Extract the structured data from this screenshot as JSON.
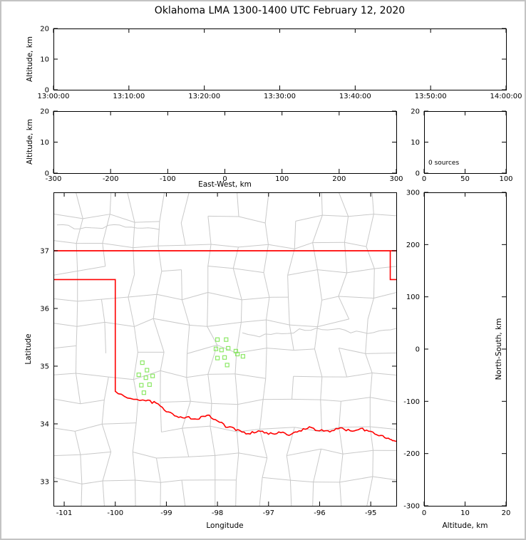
{
  "title": "Oklahoma LMA 1300-1400 UTC February 12, 2020",
  "colors": {
    "axis": "#000000",
    "county_lines": "#c9c9c9",
    "state_border": "#ff0000",
    "station_marker": "#8ce866",
    "frame": "#c3c3c3"
  },
  "chart_data": [
    {
      "id": "time_height",
      "type": "scatter",
      "xlabel": "",
      "ylabel": "Altitude, km",
      "x_tick_labels": [
        "13:00:00",
        "13:10:00",
        "13:20:00",
        "13:30:00",
        "13:40:00",
        "13:50:00",
        "14:00:00"
      ],
      "y_ticks": [
        0,
        10,
        20
      ],
      "ylim": [
        0,
        20
      ],
      "points": []
    },
    {
      "id": "ew_height",
      "type": "scatter",
      "xlabel": "East-West, km",
      "ylabel": "Altitude, km",
      "x_ticks": [
        -300,
        -200,
        -100,
        0,
        100,
        200,
        300
      ],
      "xlim": [
        -300,
        300
      ],
      "y_ticks": [
        0,
        10,
        20
      ],
      "ylim": [
        0,
        20
      ],
      "points": []
    },
    {
      "id": "altitude_histogram",
      "type": "line",
      "annotation": "0 sources",
      "x_ticks": [
        0,
        50,
        100
      ],
      "xlim": [
        0,
        100
      ],
      "y_ticks": [
        0,
        10,
        20
      ],
      "ylim": [
        0,
        20
      ],
      "points": []
    },
    {
      "id": "plan_view_map",
      "type": "scatter",
      "xlabel": "Longitude",
      "ylabel": "Latitude",
      "x_ticks": [
        -101,
        -100,
        -99,
        -98,
        -97,
        -96,
        -95
      ],
      "xlim": [
        -101.21,
        -94.5
      ],
      "y_ticks": [
        33,
        34,
        35,
        36,
        37
      ],
      "ylim": [
        32.58,
        38.012
      ],
      "stations": [
        [
          -98.0,
          35.46
        ],
        [
          -97.83,
          35.46
        ],
        [
          -98.03,
          35.3
        ],
        [
          -97.92,
          35.28
        ],
        [
          -97.79,
          35.31
        ],
        [
          -97.64,
          35.26
        ],
        [
          -98.0,
          35.14
        ],
        [
          -97.86,
          35.15
        ],
        [
          -97.81,
          35.02
        ],
        [
          -97.61,
          35.21
        ],
        [
          -97.5,
          35.17
        ],
        [
          -99.47,
          35.06
        ],
        [
          -99.38,
          34.93
        ],
        [
          -99.54,
          34.85
        ],
        [
          -99.4,
          34.8
        ],
        [
          -99.49,
          34.67
        ],
        [
          -99.33,
          34.68
        ],
        [
          -99.44,
          34.54
        ],
        [
          -99.27,
          34.83
        ]
      ],
      "points": []
    },
    {
      "id": "ns_height",
      "type": "scatter",
      "xlabel": "Altitude, km",
      "ylabel": "North-South, km",
      "x_ticks": [
        0,
        10,
        20
      ],
      "xlim": [
        0,
        20
      ],
      "y_ticks": [
        300,
        200,
        100,
        0,
        -100,
        -200,
        -300
      ],
      "ylim": [
        -300,
        300
      ],
      "points": []
    }
  ]
}
